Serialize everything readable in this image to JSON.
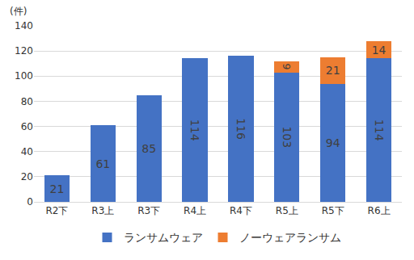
{
  "chart_data": {
    "type": "bar",
    "stacked": true,
    "y_label": "(件)",
    "categories": [
      "R2下",
      "R3上",
      "R3下",
      "R4上",
      "R4下",
      "R5上",
      "R5下",
      "R6上"
    ],
    "series": [
      {
        "name": "ランサムウェア",
        "color": "#4472c4",
        "values": [
          21,
          61,
          85,
          114,
          116,
          103,
          94,
          114
        ]
      },
      {
        "name": "ノーウェアランサム",
        "color": "#ed7d31",
        "values": [
          null,
          null,
          null,
          null,
          null,
          9,
          21,
          14
        ]
      }
    ],
    "ylim": [
      0,
      140
    ],
    "yticks": [
      0,
      20,
      40,
      60,
      80,
      100,
      120,
      140
    ],
    "grid": true,
    "legend": "bottom",
    "data_labels": true
  }
}
